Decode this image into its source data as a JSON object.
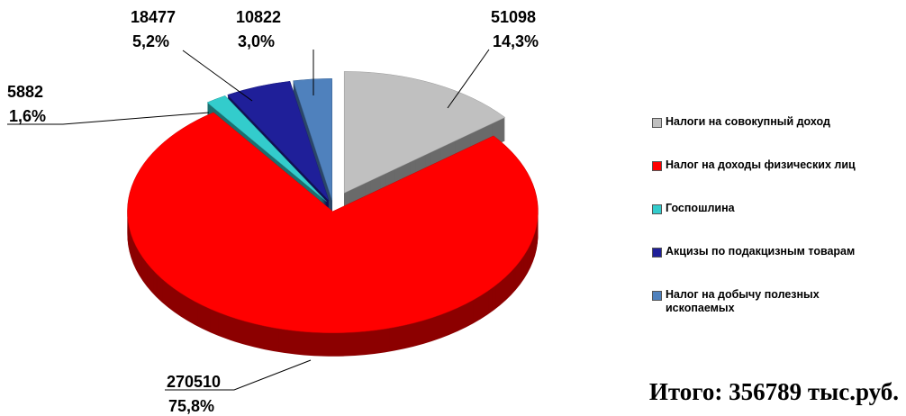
{
  "chart_data": {
    "type": "pie",
    "categories": [
      "Налоги на совокупный доход",
      "Налог на доходы физических лиц",
      "Госпошлина",
      "Акцизы по подакцизным товарам",
      "Налог на добычу полезных ископаемых"
    ],
    "values": [
      51098,
      270510,
      5882,
      18477,
      10822
    ],
    "share_labels": [
      "14,3%",
      "75,8%",
      "1,6%",
      "5,2%",
      "3,0%"
    ],
    "colors": [
      "#c0c0c0",
      "#ff0000",
      "#33cccc",
      "#1f1f99",
      "#4f81bd"
    ],
    "annotation": "Итого: 356789 тыс.руб.",
    "legend": "right"
  }
}
